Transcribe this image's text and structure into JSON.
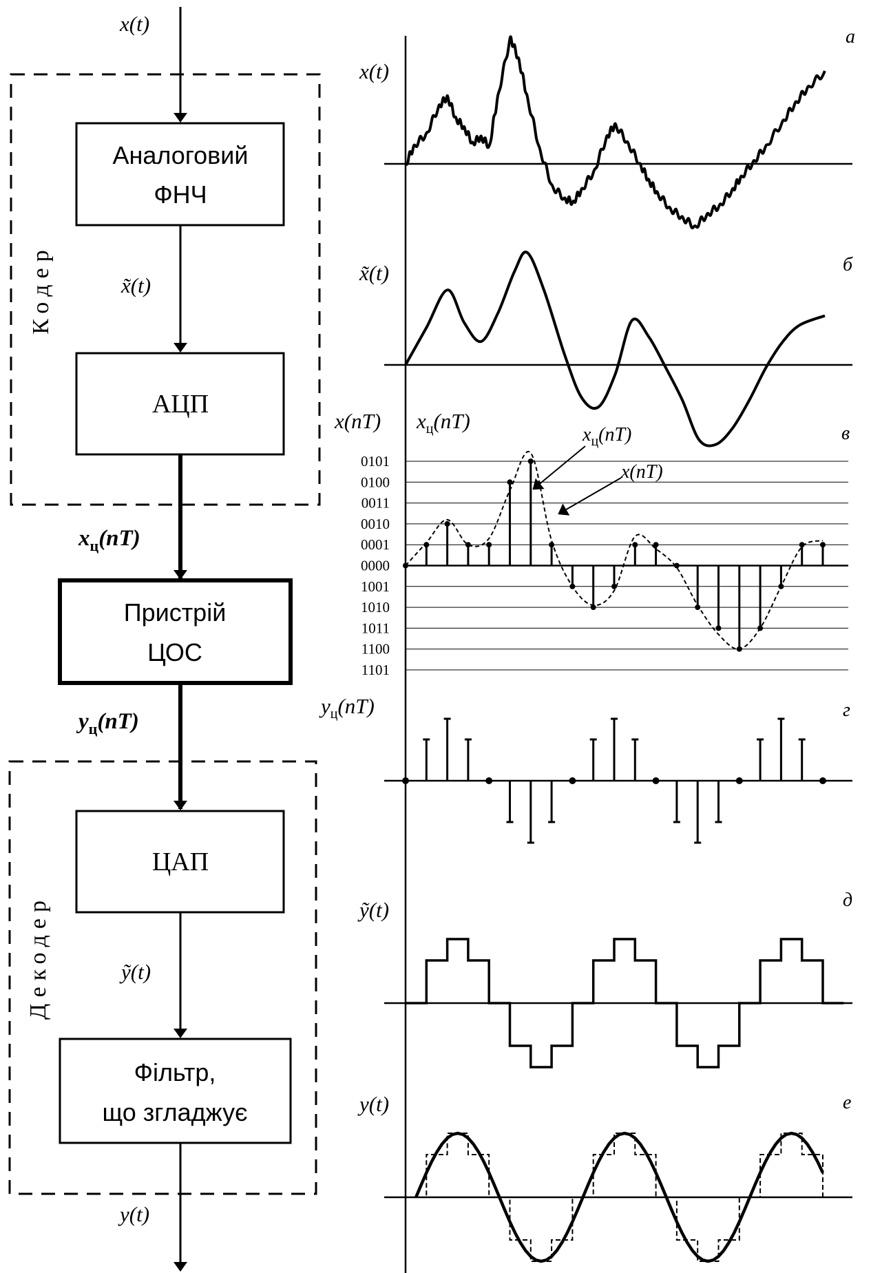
{
  "signals": {
    "input": "x(t)",
    "filtered": "x̃(t)",
    "digital_in": "xц(nT)",
    "digital_out": "yц(nT)",
    "dac_out": "ỹ(t)",
    "output": "y(t)"
  },
  "blocks": {
    "lpf_line1": "Аналоговий",
    "lpf_line2": "ФНЧ",
    "adc": "АЦП",
    "dsp_line1": "Пристрій",
    "dsp_line2": "ЦОС",
    "dac": "ЦАП",
    "smooth_line1": "Фільтр,",
    "smooth_line2": "що згладжує"
  },
  "groups": {
    "encoder": "Кодер",
    "decoder": "Декодер"
  },
  "plots": {
    "a": {
      "letter": "а",
      "ylabel": "x(t)"
    },
    "b": {
      "letter": "б",
      "ylabel": "x̃(t)"
    },
    "v": {
      "letter": "в",
      "ylabel_1": "x(nT)",
      "ylabel_2": "xц(nT)",
      "annot_quantized": "xц(nT)",
      "annot_sampled": "x(nT)",
      "codes": [
        "0101",
        "0100",
        "0011",
        "0010",
        "0001",
        "0000",
        "1001",
        "1010",
        "1011",
        "1100",
        "1101"
      ]
    },
    "g": {
      "letter": "г",
      "ylabel": "yц(nT)"
    },
    "d": {
      "letter": "д",
      "ylabel": "ỹ(t)"
    },
    "e": {
      "letter": "е",
      "ylabel": "y(t)"
    }
  },
  "chart_data": [
    {
      "panel": "а",
      "type": "line",
      "description_y": "x(t)",
      "x": [
        0,
        0.02,
        0.05,
        0.08,
        0.1,
        0.12,
        0.14,
        0.16,
        0.18,
        0.2,
        0.22,
        0.25,
        0.27,
        0.29,
        0.32,
        0.35,
        0.38,
        0.4,
        0.42,
        0.45,
        0.48,
        0.5,
        0.53,
        0.56,
        0.58,
        0.6,
        0.63,
        0.66,
        0.69,
        0.72,
        0.75,
        0.78,
        0.8,
        0.83,
        0.86,
        0.9,
        0.93,
        0.96,
        1.0
      ],
      "y": [
        0.0,
        0.3,
        0.5,
        0.95,
        1.1,
        0.75,
        0.6,
        0.35,
        0.45,
        0.3,
        1.1,
        2.05,
        1.7,
        1.1,
        0.25,
        -0.35,
        -0.55,
        -0.6,
        -0.4,
        -0.1,
        0.45,
        0.65,
        0.35,
        0.0,
        -0.25,
        -0.45,
        -0.7,
        -0.85,
        -1.0,
        -0.8,
        -0.65,
        -0.4,
        -0.2,
        0.05,
        0.3,
        0.7,
        1.0,
        1.25,
        1.5
      ]
    },
    {
      "panel": "б",
      "type": "line",
      "description_y": "x̃(t)",
      "x": [
        0,
        0.05,
        0.1,
        0.14,
        0.18,
        0.22,
        0.26,
        0.29,
        0.33,
        0.38,
        0.42,
        0.46,
        0.5,
        0.54,
        0.58,
        0.62,
        0.66,
        0.7,
        0.74,
        0.78,
        0.82,
        0.86,
        0.9,
        0.94,
        1.0
      ],
      "y": [
        0.0,
        0.8,
        1.6,
        0.9,
        0.5,
        1.1,
        2.0,
        2.4,
        1.6,
        0.2,
        -0.7,
        -0.9,
        -0.2,
        0.95,
        0.6,
        -0.05,
        -0.75,
        -1.6,
        -1.7,
        -1.35,
        -0.75,
        -0.05,
        0.5,
        0.85,
        1.05
      ]
    },
    {
      "panel": "в",
      "type": "scatter",
      "series": [
        {
          "name": "x(nT)",
          "n": [
            0,
            1,
            2,
            3,
            4,
            5,
            6,
            7,
            8,
            9,
            10,
            11,
            12,
            13,
            14,
            15,
            16,
            17,
            18,
            19,
            20
          ],
          "values": [
            0,
            1,
            2,
            1,
            1,
            4,
            5,
            1,
            -1,
            -2,
            -1,
            1,
            1,
            0,
            -2,
            -3,
            -4,
            -3,
            -1,
            1,
            1
          ]
        },
        {
          "name": "xц(nT)",
          "n": [
            0,
            1,
            2,
            3,
            4,
            5,
            6,
            7,
            8,
            9,
            10,
            11,
            12,
            13,
            14,
            15,
            16,
            17,
            18,
            19,
            20
          ],
          "values": [
            0,
            1,
            2,
            1,
            1,
            4,
            5,
            1,
            -1,
            -2,
            -1,
            1,
            1,
            0,
            -2,
            -3,
            -4,
            -3,
            -1,
            1,
            1
          ]
        }
      ]
    },
    {
      "panel": "г",
      "type": "scatter",
      "series": [
        {
          "name": "yц(nT)",
          "n": [
            0,
            1,
            2,
            3,
            4,
            5,
            6,
            7,
            8,
            9,
            10,
            11,
            12,
            13,
            14,
            15,
            16,
            17,
            18,
            19,
            20
          ],
          "values": [
            0,
            2,
            3,
            2,
            0,
            -2,
            -3,
            -2,
            0,
            2,
            3,
            2,
            0,
            -2,
            -3,
            -2,
            0,
            2,
            3,
            2,
            0
          ]
        }
      ]
    },
    {
      "panel": "д",
      "type": "line",
      "description_y": "ỹ(t)",
      "steps": [
        0,
        2,
        3,
        2,
        0,
        -2,
        -3,
        -2,
        0,
        2,
        3,
        2,
        0,
        -2,
        -3,
        -2,
        0,
        2,
        3,
        2,
        0
      ]
    },
    {
      "panel": "е",
      "type": "line",
      "description_y": "y(t)",
      "smooth": "sine, period 8 samples, amplitude 3",
      "steps": [
        0,
        2,
        3,
        2,
        0,
        -2,
        -3,
        -2,
        0,
        2,
        3,
        2,
        0,
        -2,
        -3,
        -2,
        0,
        2,
        3,
        2,
        0
      ]
    }
  ]
}
